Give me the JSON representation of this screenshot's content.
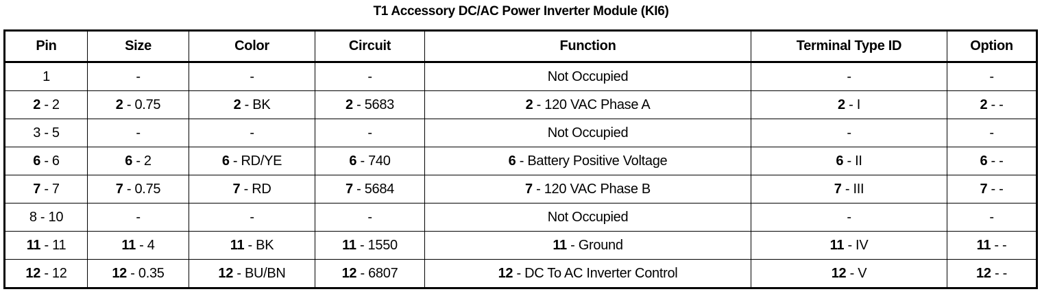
{
  "title": "T1 Accessory DC/AC Power Inverter Module (KI6)",
  "columns": [
    "Pin",
    "Size",
    "Color",
    "Circuit",
    "Function",
    "Terminal Type ID",
    "Option"
  ],
  "rows": [
    [
      {
        "b": "",
        "t": "1"
      },
      {
        "b": "",
        "t": "-"
      },
      {
        "b": "",
        "t": "-"
      },
      {
        "b": "",
        "t": "-"
      },
      {
        "b": "",
        "t": "Not Occupied"
      },
      {
        "b": "",
        "t": "-"
      },
      {
        "b": "",
        "t": "-"
      }
    ],
    [
      {
        "b": "2",
        "t": " - 2"
      },
      {
        "b": "2",
        "t": " - 0.75"
      },
      {
        "b": "2",
        "t": " - BK"
      },
      {
        "b": "2",
        "t": " - 5683"
      },
      {
        "b": "2",
        "t": " - 120 VAC Phase A"
      },
      {
        "b": "2",
        "t": " - I"
      },
      {
        "b": "2",
        "t": " - -"
      }
    ],
    [
      {
        "b": "",
        "t": "3 - 5"
      },
      {
        "b": "",
        "t": "-"
      },
      {
        "b": "",
        "t": "-"
      },
      {
        "b": "",
        "t": "-"
      },
      {
        "b": "",
        "t": "Not Occupied"
      },
      {
        "b": "",
        "t": "-"
      },
      {
        "b": "",
        "t": "-"
      }
    ],
    [
      {
        "b": "6",
        "t": " - 6"
      },
      {
        "b": "6",
        "t": " - 2"
      },
      {
        "b": "6",
        "t": " - RD/YE"
      },
      {
        "b": "6",
        "t": " - 740"
      },
      {
        "b": "6",
        "t": " - Battery Positive Voltage"
      },
      {
        "b": "6",
        "t": " - II"
      },
      {
        "b": "6",
        "t": " - -"
      }
    ],
    [
      {
        "b": "7",
        "t": " - 7"
      },
      {
        "b": "7",
        "t": " - 0.75"
      },
      {
        "b": "7",
        "t": " - RD"
      },
      {
        "b": "7",
        "t": " - 5684"
      },
      {
        "b": "7",
        "t": " - 120 VAC Phase B"
      },
      {
        "b": "7",
        "t": " - III"
      },
      {
        "b": "7",
        "t": " - -"
      }
    ],
    [
      {
        "b": "",
        "t": "8 - 10"
      },
      {
        "b": "",
        "t": "-"
      },
      {
        "b": "",
        "t": "-"
      },
      {
        "b": "",
        "t": "-"
      },
      {
        "b": "",
        "t": "Not Occupied"
      },
      {
        "b": "",
        "t": "-"
      },
      {
        "b": "",
        "t": "-"
      }
    ],
    [
      {
        "b": "11",
        "t": " - 11"
      },
      {
        "b": "11",
        "t": " - 4"
      },
      {
        "b": "11",
        "t": " - BK"
      },
      {
        "b": "11",
        "t": " - 1550"
      },
      {
        "b": "11",
        "t": " - Ground"
      },
      {
        "b": "11",
        "t": " - IV"
      },
      {
        "b": "11",
        "t": " - -"
      }
    ],
    [
      {
        "b": "12",
        "t": " - 12"
      },
      {
        "b": "12",
        "t": " - 0.35"
      },
      {
        "b": "12",
        "t": " - BU/BN"
      },
      {
        "b": "12",
        "t": " - 6807"
      },
      {
        "b": "12",
        "t": " - DC To AC Inverter Control"
      },
      {
        "b": "12",
        "t": " - V"
      },
      {
        "b": "12",
        "t": " - -"
      }
    ]
  ]
}
